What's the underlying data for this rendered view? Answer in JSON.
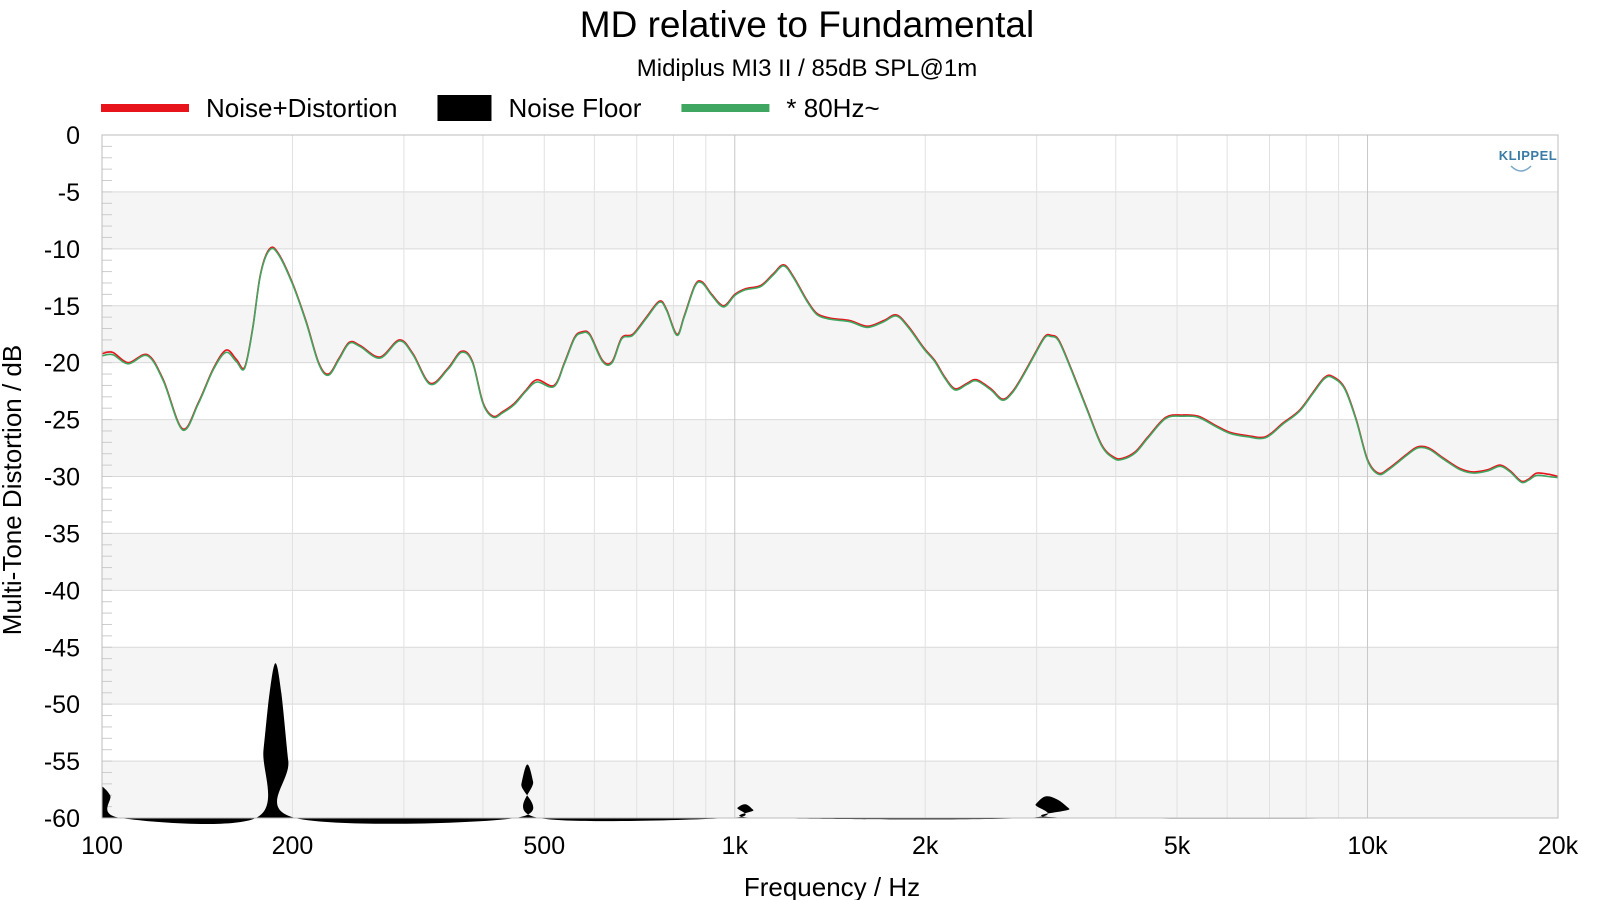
{
  "chart_data": {
    "type": "line",
    "title": "MD relative to Fundamental",
    "subtitle": "Midiplus MI3 II / 85dB SPL@1m",
    "xlabel": "Frequency / Hz",
    "ylabel": "Multi-Tone Distortion / dB",
    "x_scale": "log",
    "xlim": [
      100,
      20000
    ],
    "ylim": [
      -60,
      0
    ],
    "x_ticks": [
      {
        "value": 100,
        "label": "100"
      },
      {
        "value": 200,
        "label": "200"
      },
      {
        "value": 500,
        "label": "500"
      },
      {
        "value": 1000,
        "label": "1k"
      },
      {
        "value": 2000,
        "label": "2k"
      },
      {
        "value": 5000,
        "label": "5k"
      },
      {
        "value": 10000,
        "label": "10k"
      },
      {
        "value": 20000,
        "label": "20k"
      }
    ],
    "y_ticks": [
      {
        "value": 0,
        "label": "0"
      },
      {
        "value": -5,
        "label": "-5"
      },
      {
        "value": -10,
        "label": "-10"
      },
      {
        "value": -15,
        "label": "-15"
      },
      {
        "value": -20,
        "label": "-20"
      },
      {
        "value": -25,
        "label": "-25"
      },
      {
        "value": -30,
        "label": "-30"
      },
      {
        "value": -35,
        "label": "-35"
      },
      {
        "value": -40,
        "label": "-40"
      },
      {
        "value": -45,
        "label": "-45"
      },
      {
        "value": -50,
        "label": "-50"
      },
      {
        "value": -55,
        "label": "-55"
      },
      {
        "value": -60,
        "label": "-60"
      }
    ],
    "grid": true,
    "legend_position": "top-left",
    "logo": "KLIPPEL",
    "series": [
      {
        "name": "Noise+Distortion",
        "color": "#e8141b",
        "style": "line",
        "points": [
          [
            100,
            -19.2
          ],
          [
            104,
            -19.1
          ],
          [
            110,
            -20
          ],
          [
            118,
            -19.3
          ],
          [
            125,
            -21.5
          ],
          [
            134,
            -25.8
          ],
          [
            142,
            -23.5
          ],
          [
            150,
            -20.5
          ],
          [
            157,
            -18.9
          ],
          [
            163,
            -19.7
          ],
          [
            168,
            -20.4
          ],
          [
            173,
            -17
          ],
          [
            178,
            -12.2
          ],
          [
            184,
            -10
          ],
          [
            190,
            -10.4
          ],
          [
            200,
            -13
          ],
          [
            210,
            -16.3
          ],
          [
            220,
            -20
          ],
          [
            228,
            -21
          ],
          [
            237,
            -19.6
          ],
          [
            246,
            -18.2
          ],
          [
            256,
            -18.5
          ],
          [
            275,
            -19.5
          ],
          [
            295,
            -18
          ],
          [
            310,
            -19.2
          ],
          [
            330,
            -21.8
          ],
          [
            352,
            -20.5
          ],
          [
            370,
            -19
          ],
          [
            385,
            -19.9
          ],
          [
            400,
            -23.5
          ],
          [
            415,
            -24.7
          ],
          [
            430,
            -24.3
          ],
          [
            448,
            -23.6
          ],
          [
            468,
            -22.4
          ],
          [
            487,
            -21.5
          ],
          [
            518,
            -22
          ],
          [
            538,
            -20
          ],
          [
            558,
            -17.8
          ],
          [
            573,
            -17.3
          ],
          [
            590,
            -17.5
          ],
          [
            618,
            -19.8
          ],
          [
            640,
            -19.9
          ],
          [
            663,
            -17.8
          ],
          [
            690,
            -17.5
          ],
          [
            725,
            -16
          ],
          [
            760,
            -14.6
          ],
          [
            780,
            -15.3
          ],
          [
            810,
            -17.5
          ],
          [
            832,
            -15.9
          ],
          [
            865,
            -13.2
          ],
          [
            888,
            -12.9
          ],
          [
            920,
            -14
          ],
          [
            960,
            -15
          ],
          [
            1000,
            -14
          ],
          [
            1040,
            -13.5
          ],
          [
            1100,
            -13.2
          ],
          [
            1150,
            -12.2
          ],
          [
            1195,
            -11.4
          ],
          [
            1240,
            -12.5
          ],
          [
            1300,
            -14.5
          ],
          [
            1350,
            -15.7
          ],
          [
            1420,
            -16.1
          ],
          [
            1520,
            -16.3
          ],
          [
            1620,
            -16.8
          ],
          [
            1720,
            -16.3
          ],
          [
            1800,
            -15.8
          ],
          [
            1880,
            -16.8
          ],
          [
            1990,
            -18.7
          ],
          [
            2070,
            -19.8
          ],
          [
            2150,
            -21.3
          ],
          [
            2230,
            -22.3
          ],
          [
            2330,
            -21.8
          ],
          [
            2410,
            -21.5
          ],
          [
            2540,
            -22.3
          ],
          [
            2650,
            -23.2
          ],
          [
            2750,
            -22.5
          ],
          [
            2860,
            -21
          ],
          [
            2980,
            -19.2
          ],
          [
            3090,
            -17.7
          ],
          [
            3160,
            -17.6
          ],
          [
            3250,
            -18
          ],
          [
            3400,
            -20.5
          ],
          [
            3600,
            -24
          ],
          [
            3800,
            -27.2
          ],
          [
            3970,
            -28.3
          ],
          [
            4100,
            -28.4
          ],
          [
            4300,
            -27.8
          ],
          [
            4500,
            -26.5
          ],
          [
            4800,
            -24.8
          ],
          [
            5100,
            -24.6
          ],
          [
            5400,
            -24.7
          ],
          [
            5750,
            -25.5
          ],
          [
            6050,
            -26.1
          ],
          [
            6450,
            -26.4
          ],
          [
            6900,
            -26.5
          ],
          [
            7350,
            -25.3
          ],
          [
            7800,
            -24.2
          ],
          [
            8200,
            -22.6
          ],
          [
            8550,
            -21.3
          ],
          [
            8800,
            -21.2
          ],
          [
            9200,
            -22.2
          ],
          [
            9600,
            -25
          ],
          [
            10000,
            -28.5
          ],
          [
            10400,
            -29.7
          ],
          [
            10800,
            -29.3
          ],
          [
            11500,
            -28.1
          ],
          [
            12000,
            -27.4
          ],
          [
            12500,
            -27.5
          ],
          [
            13200,
            -28.4
          ],
          [
            14000,
            -29.3
          ],
          [
            14700,
            -29.6
          ],
          [
            15500,
            -29.4
          ],
          [
            16200,
            -29
          ],
          [
            16800,
            -29.5
          ],
          [
            17500,
            -30.4
          ],
          [
            18000,
            -30.2
          ],
          [
            18500,
            -29.7
          ],
          [
            19300,
            -29.8
          ],
          [
            20000,
            -30
          ]
        ]
      },
      {
        "name": "Noise Floor",
        "color": "#000000",
        "style": "filled",
        "points": [
          [
            100,
            -57.2
          ],
          [
            103,
            -58
          ],
          [
            107,
            -60
          ],
          [
            175,
            -60
          ],
          [
            180,
            -54
          ],
          [
            184,
            -49
          ],
          [
            188,
            -46.4
          ],
          [
            192,
            -49
          ],
          [
            197,
            -55
          ],
          [
            202,
            -60
          ],
          [
            450,
            -60
          ],
          [
            460,
            -57
          ],
          [
            470,
            -55.3
          ],
          [
            480,
            -56.8
          ],
          [
            490,
            -60
          ],
          [
            980,
            -60
          ],
          [
            1010,
            -59.1
          ],
          [
            1040,
            -58.8
          ],
          [
            1070,
            -59.3
          ],
          [
            1100,
            -60
          ],
          [
            2880,
            -60
          ],
          [
            2990,
            -58.8
          ],
          [
            3100,
            -58.1
          ],
          [
            3240,
            -58.4
          ],
          [
            3380,
            -59.2
          ],
          [
            3500,
            -60
          ],
          [
            20000,
            -60
          ]
        ]
      },
      {
        "name": "* 80Hz~",
        "color": "#3fa661",
        "style": "line",
        "points": [
          [
            100,
            -19.4
          ],
          [
            104,
            -19.3
          ],
          [
            110,
            -20.1
          ],
          [
            118,
            -19.4
          ],
          [
            125,
            -21.6
          ],
          [
            134,
            -25.9
          ],
          [
            142,
            -23.6
          ],
          [
            150,
            -20.6
          ],
          [
            157,
            -19.1
          ],
          [
            163,
            -19.9
          ],
          [
            168,
            -20.5
          ],
          [
            173,
            -17.1
          ],
          [
            178,
            -12.3
          ],
          [
            184,
            -10.1
          ],
          [
            190,
            -10.5
          ],
          [
            200,
            -13.1
          ],
          [
            210,
            -16.4
          ],
          [
            220,
            -20.1
          ],
          [
            228,
            -21.1
          ],
          [
            237,
            -19.7
          ],
          [
            246,
            -18.3
          ],
          [
            256,
            -18.6
          ],
          [
            275,
            -19.6
          ],
          [
            295,
            -18.1
          ],
          [
            310,
            -19.3
          ],
          [
            330,
            -21.9
          ],
          [
            352,
            -20.6
          ],
          [
            370,
            -19.1
          ],
          [
            385,
            -20
          ],
          [
            400,
            -23.6
          ],
          [
            415,
            -24.8
          ],
          [
            430,
            -24.4
          ],
          [
            448,
            -23.7
          ],
          [
            468,
            -22.5
          ],
          [
            487,
            -21.7
          ],
          [
            518,
            -22.1
          ],
          [
            538,
            -20.1
          ],
          [
            558,
            -17.9
          ],
          [
            573,
            -17.4
          ],
          [
            590,
            -17.6
          ],
          [
            618,
            -19.9
          ],
          [
            640,
            -20
          ],
          [
            663,
            -17.9
          ],
          [
            690,
            -17.6
          ],
          [
            725,
            -16.1
          ],
          [
            760,
            -14.7
          ],
          [
            780,
            -15.4
          ],
          [
            810,
            -17.6
          ],
          [
            832,
            -16
          ],
          [
            865,
            -13.3
          ],
          [
            888,
            -13
          ],
          [
            920,
            -14.1
          ],
          [
            960,
            -15.1
          ],
          [
            1000,
            -14.1
          ],
          [
            1040,
            -13.6
          ],
          [
            1100,
            -13.3
          ],
          [
            1150,
            -12.3
          ],
          [
            1195,
            -11.5
          ],
          [
            1240,
            -12.6
          ],
          [
            1300,
            -14.6
          ],
          [
            1350,
            -15.8
          ],
          [
            1420,
            -16.2
          ],
          [
            1520,
            -16.4
          ],
          [
            1620,
            -16.9
          ],
          [
            1720,
            -16.4
          ],
          [
            1800,
            -15.9
          ],
          [
            1880,
            -16.9
          ],
          [
            1990,
            -18.8
          ],
          [
            2070,
            -19.9
          ],
          [
            2150,
            -21.4
          ],
          [
            2230,
            -22.4
          ],
          [
            2330,
            -21.9
          ],
          [
            2410,
            -21.6
          ],
          [
            2540,
            -22.4
          ],
          [
            2650,
            -23.3
          ],
          [
            2750,
            -22.6
          ],
          [
            2860,
            -21.1
          ],
          [
            2980,
            -19.3
          ],
          [
            3090,
            -17.8
          ],
          [
            3160,
            -17.7
          ],
          [
            3250,
            -18.1
          ],
          [
            3400,
            -20.6
          ],
          [
            3600,
            -24.1
          ],
          [
            3800,
            -27.3
          ],
          [
            3970,
            -28.4
          ],
          [
            4100,
            -28.5
          ],
          [
            4300,
            -27.9
          ],
          [
            4500,
            -26.6
          ],
          [
            4800,
            -24.9
          ],
          [
            5100,
            -24.7
          ],
          [
            5400,
            -24.8
          ],
          [
            5750,
            -25.6
          ],
          [
            6050,
            -26.2
          ],
          [
            6450,
            -26.5
          ],
          [
            6900,
            -26.6
          ],
          [
            7350,
            -25.4
          ],
          [
            7800,
            -24.3
          ],
          [
            8200,
            -22.7
          ],
          [
            8550,
            -21.4
          ],
          [
            8800,
            -21.3
          ],
          [
            9200,
            -22.3
          ],
          [
            9600,
            -25.1
          ],
          [
            10000,
            -28.6
          ],
          [
            10400,
            -29.8
          ],
          [
            10800,
            -29.4
          ],
          [
            11500,
            -28.2
          ],
          [
            12000,
            -27.5
          ],
          [
            12500,
            -27.6
          ],
          [
            13200,
            -28.5
          ],
          [
            14000,
            -29.4
          ],
          [
            14700,
            -29.7
          ],
          [
            15500,
            -29.5
          ],
          [
            16200,
            -29.1
          ],
          [
            16800,
            -29.6
          ],
          [
            17500,
            -30.5
          ],
          [
            18000,
            -30.3
          ],
          [
            18500,
            -29.9
          ],
          [
            19300,
            -30
          ],
          [
            20000,
            -30.1
          ]
        ]
      }
    ]
  }
}
